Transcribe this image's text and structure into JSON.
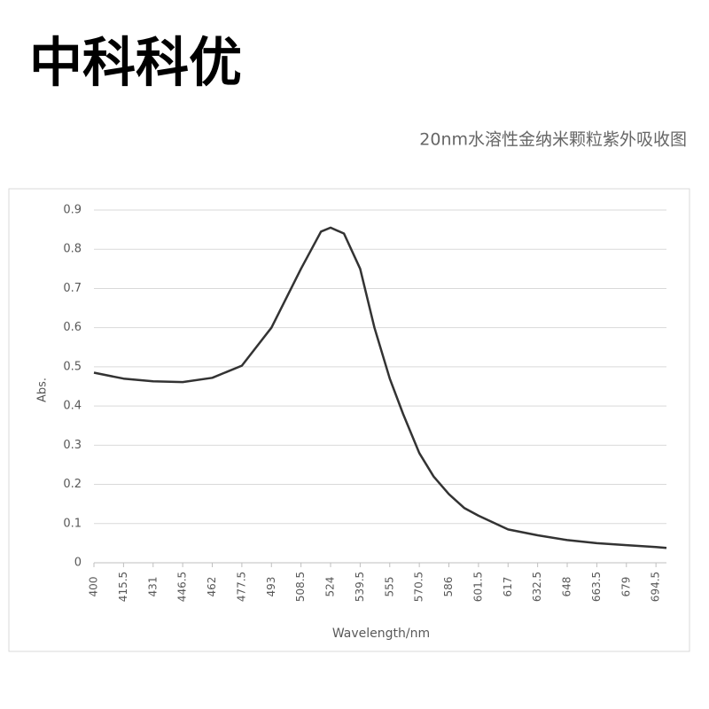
{
  "header": {
    "title": "中科科优",
    "caption": "20nm水溶性金纳米颗粒紫外吸收图"
  },
  "chart_data": {
    "type": "line",
    "x_label": "Wavelength/nm",
    "y_label": "Abs.",
    "x": [
      400,
      415.5,
      431,
      446.5,
      462,
      477.5,
      493,
      508.5,
      519,
      524,
      531,
      539.5,
      547,
      555,
      562,
      570.5,
      578,
      586,
      594,
      601.5,
      617,
      632.5,
      648,
      663.5,
      679,
      694.5,
      700
    ],
    "values": [
      0.485,
      0.47,
      0.463,
      0.461,
      0.472,
      0.503,
      0.6,
      0.75,
      0.845,
      0.855,
      0.84,
      0.75,
      0.6,
      0.47,
      0.38,
      0.28,
      0.22,
      0.175,
      0.14,
      0.12,
      0.085,
      0.07,
      0.058,
      0.05,
      0.045,
      0.04,
      0.038
    ],
    "color": "#333333",
    "xlim": [
      400,
      700
    ],
    "xticks": [
      400,
      415.5,
      431,
      446.5,
      462,
      477.5,
      493,
      508.5,
      524,
      539.5,
      555,
      570.5,
      586,
      601.5,
      617,
      632.5,
      648,
      663.5,
      679,
      694.5
    ],
    "ylim": [
      0,
      0.9
    ],
    "yticks": [
      0,
      0.1,
      0.2,
      0.3,
      0.4,
      0.5,
      0.6,
      0.7,
      0.8,
      0.9
    ],
    "grid": true
  }
}
